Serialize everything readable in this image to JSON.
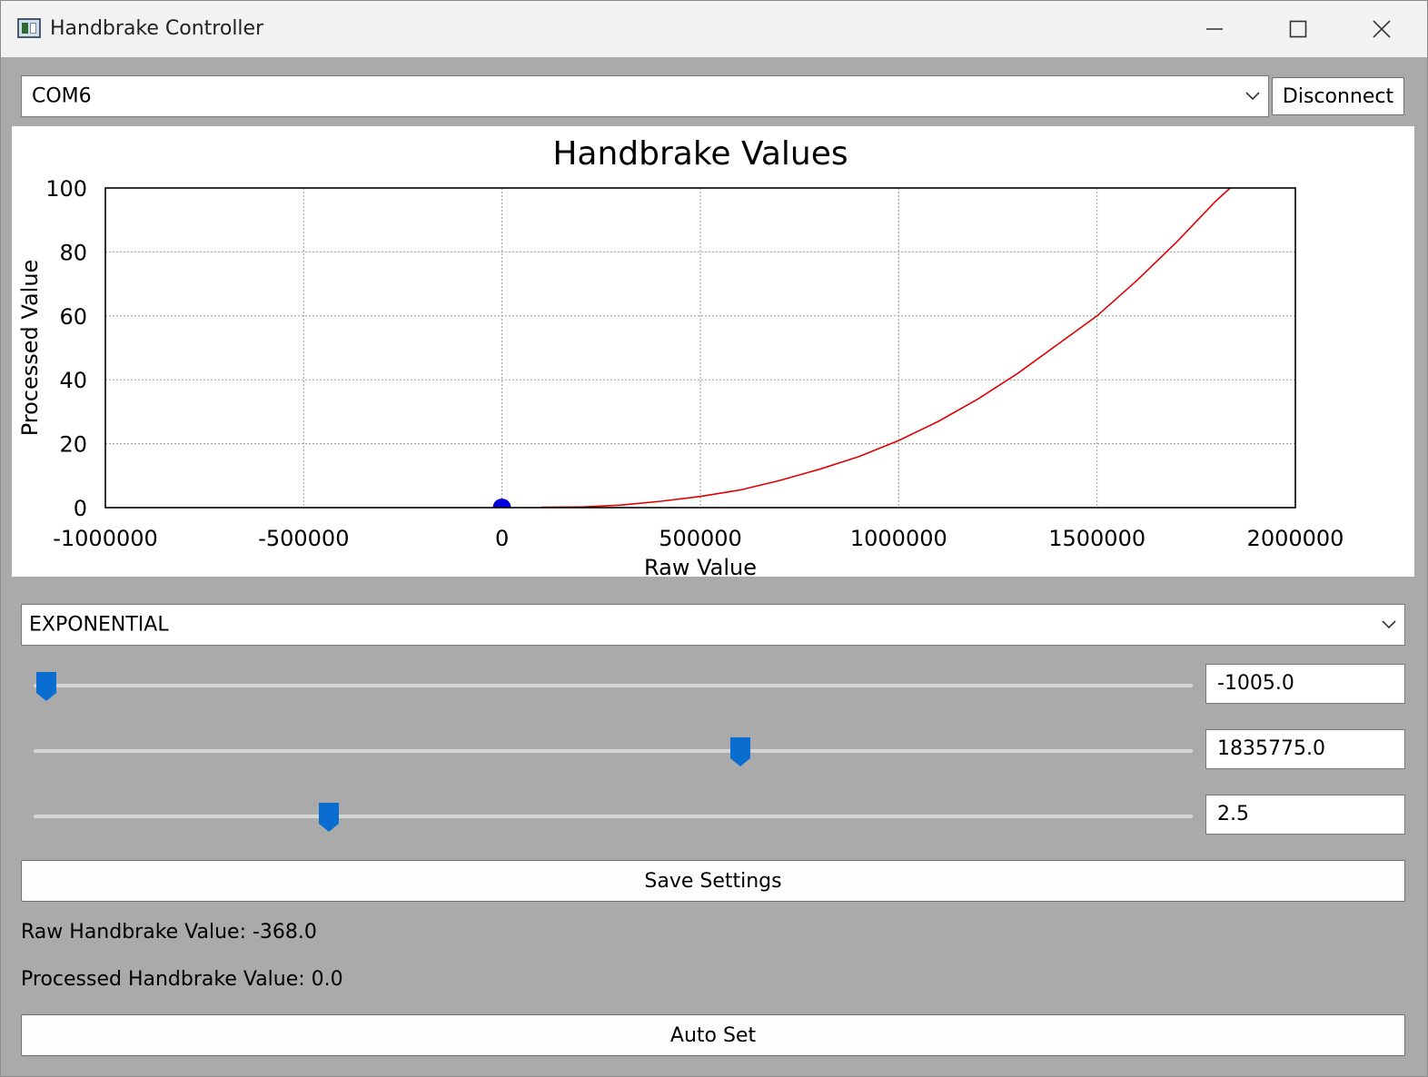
{
  "window": {
    "title": "Handbrake Controller",
    "controls": [
      "minimize-icon",
      "maximize-icon",
      "close-icon"
    ]
  },
  "connection": {
    "port": "COM6",
    "disconnect_label": "Disconnect"
  },
  "chart_data": {
    "type": "line",
    "title": "Handbrake Values",
    "xlabel": "Raw Value",
    "ylabel": "Processed Value",
    "xlim": [
      -1000000,
      2000000
    ],
    "ylim": [
      0,
      100
    ],
    "xticks": [
      -1000000,
      -500000,
      0,
      500000,
      1000000,
      1500000,
      2000000
    ],
    "yticks": [
      0,
      20,
      40,
      60,
      80,
      100
    ],
    "grid": true,
    "series": [
      {
        "color": "#e00000",
        "x": [
          100000,
          200000,
          300000,
          400000,
          500000,
          600000,
          700000,
          800000,
          900000,
          1000000,
          1100000,
          1200000,
          1300000,
          1400000,
          1500000,
          1600000,
          1700000,
          1800000,
          1835775
        ],
        "y": [
          0.1,
          0.2,
          0.8,
          2,
          3.5,
          5.5,
          8.5,
          12,
          16,
          21,
          27,
          34,
          42,
          51,
          60,
          71,
          83,
          96,
          100
        ]
      }
    ],
    "marker": {
      "color": "#0000dd",
      "x": -368,
      "y": 0
    }
  },
  "curve": {
    "mode": "EXPONENTIAL"
  },
  "sliders": [
    {
      "value": "-1005.0",
      "fraction": 0.011
    },
    {
      "value": "1835775.0",
      "fraction": 0.61
    },
    {
      "value": "2.5",
      "fraction": 0.255
    }
  ],
  "save_label": "Save Settings",
  "readouts": {
    "raw": "Raw Handbrake Value: -368.0",
    "processed": "Processed Handbrake Value: 0.0"
  },
  "autoset_label": "Auto Set",
  "colors": {
    "accent": "#0a6ed1",
    "curve": "#e00000",
    "marker": "#0000dd"
  }
}
